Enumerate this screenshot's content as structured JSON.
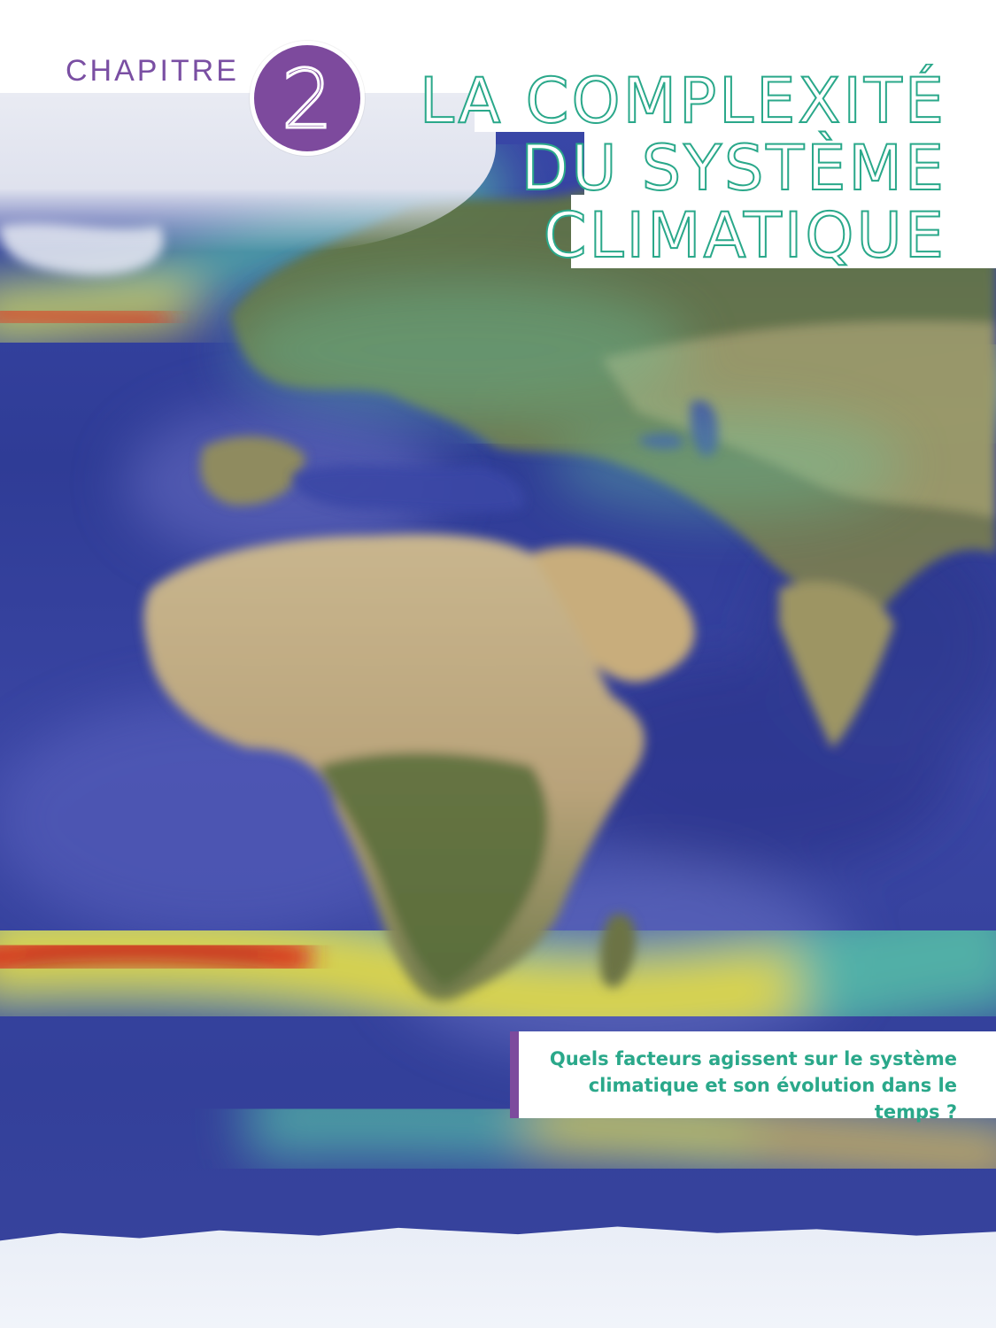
{
  "header": {
    "chapter_label": "CHAPITRE",
    "chapter_number": "2",
    "title_lines": [
      "LA COMPLEXITÉ",
      "DU SYSTÈME",
      "CLIMATIQUE"
    ]
  },
  "question": {
    "line1": "Quels facteurs agissent sur le système",
    "line2": "climatique et son évolution dans le temps ?"
  },
  "colors": {
    "accent_purple": "#7d4a9d",
    "accent_green": "#2aa88a",
    "ocean_blue": "#33409a"
  }
}
